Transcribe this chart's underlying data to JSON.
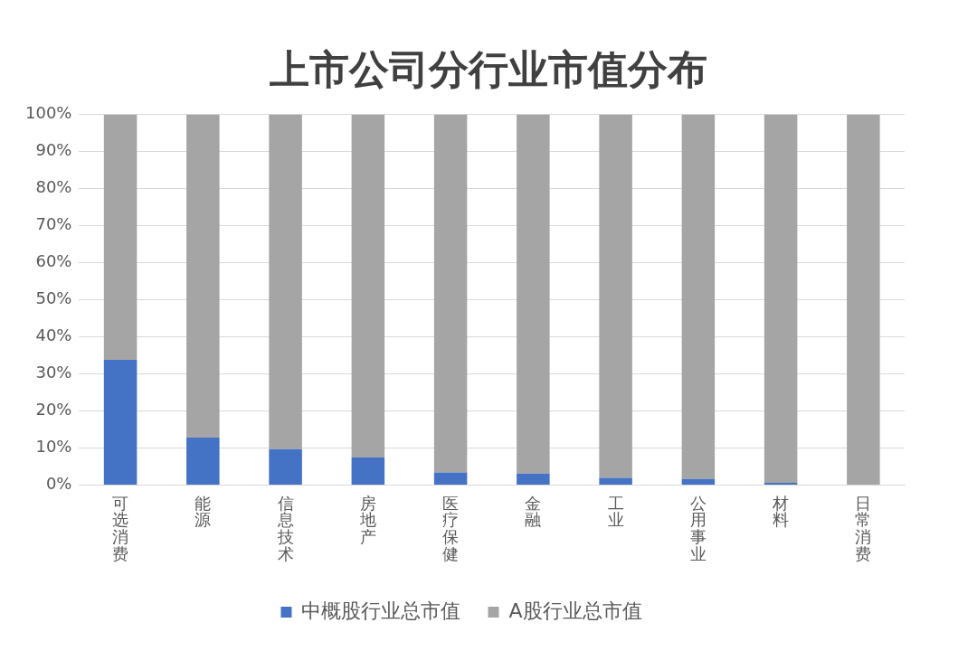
{
  "chart_data": {
    "type": "bar",
    "title": "上市公司分行业市值分布",
    "stacked": true,
    "categories": [
      "可选消费",
      "能源",
      "信息技术",
      "房地产",
      "医疗保健",
      "金融",
      "工业",
      "公用事业",
      "材料",
      "日常消费"
    ],
    "series": [
      {
        "name": "中概股行业总市值",
        "color": "#4472c4",
        "values": [
          33.8,
          12.8,
          9.7,
          7.4,
          3.4,
          3.1,
          1.9,
          1.6,
          0.6,
          null
        ]
      },
      {
        "name": "A股行业总市值",
        "color": "#a5a5a5",
        "values": [
          66.2,
          87.2,
          90.3,
          92.6,
          96.6,
          96.9,
          98.1,
          98.4,
          99.4,
          100
        ]
      }
    ],
    "ylim": [
      0,
      100
    ],
    "yticks": [
      {
        "value": 0,
        "label": "0%"
      },
      {
        "value": 10,
        "label": "10%"
      },
      {
        "value": 20,
        "label": "20%"
      },
      {
        "value": 30,
        "label": "30%"
      },
      {
        "value": 40,
        "label": "40%"
      },
      {
        "value": 50,
        "label": "50%"
      },
      {
        "value": 60,
        "label": "60%"
      },
      {
        "value": 70,
        "label": "70%"
      },
      {
        "value": 80,
        "label": "80%"
      },
      {
        "value": 90,
        "label": "90%"
      },
      {
        "value": 100,
        "label": "100%"
      }
    ],
    "grid": "y",
    "legend": "bottom"
  }
}
